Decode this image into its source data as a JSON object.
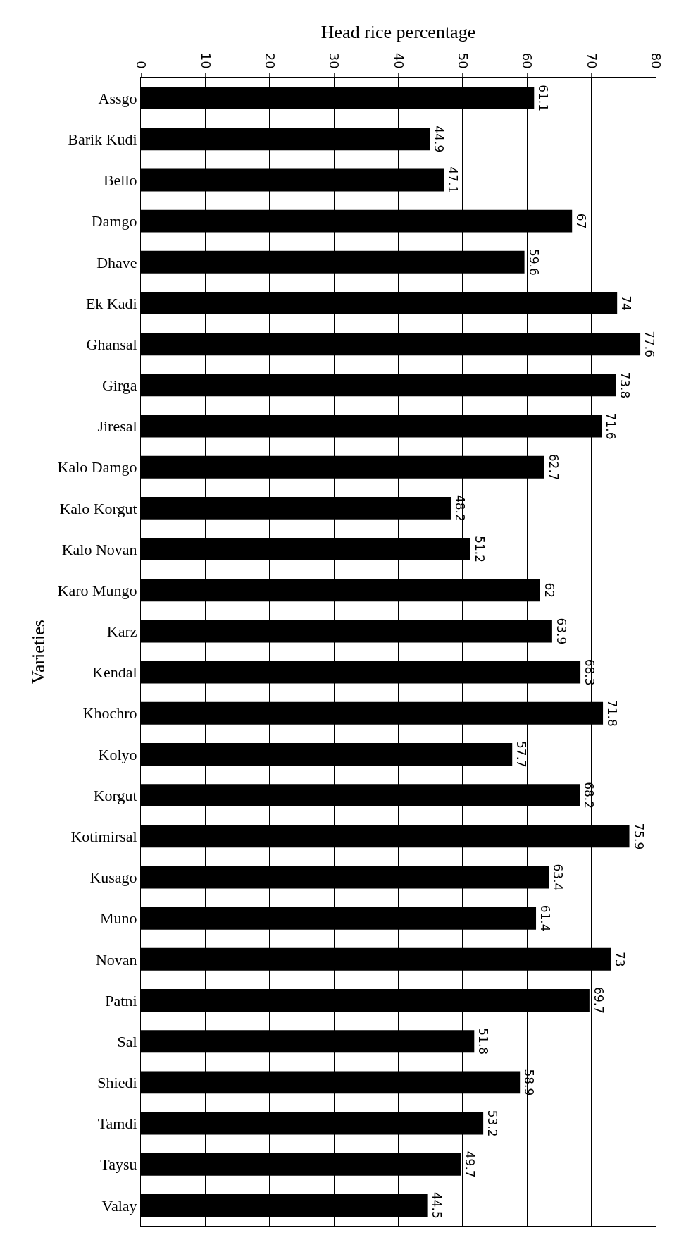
{
  "chart_data": {
    "type": "bar",
    "orientation": "horizontal",
    "xlabel": "Head rice percentage",
    "ylabel": "Varieties",
    "categories": [
      "Assgo",
      "Barik Kudi",
      "Bello",
      "Damgo",
      "Dhave",
      "Ek Kadi",
      "Ghansal",
      "Girga",
      "Jiresal",
      "Kalo Damgo",
      "Kalo Korgut",
      "Kalo Novan",
      "Karo Mungo",
      "Karz",
      "Kendal",
      "Khochro",
      "Kolyo",
      "Korgut",
      "Kotimirsal",
      "Kusago",
      "Muno",
      "Novan",
      "Patni",
      "Sal",
      "Shiedi",
      "Tamdi",
      "Taysu",
      "Valay"
    ],
    "values": [
      61.1,
      44.9,
      47.1,
      67,
      59.6,
      74,
      77.6,
      73.8,
      71.6,
      62.7,
      48.2,
      51.2,
      62,
      63.9,
      68.3,
      71.8,
      57.7,
      68.2,
      75.9,
      63.4,
      61.4,
      73,
      69.7,
      51.8,
      58.9,
      53.2,
      49.7,
      44.5
    ],
    "color": "#000000",
    "xlim": [
      0,
      80
    ],
    "xticks": [
      0,
      10,
      20,
      30,
      40,
      50,
      60,
      70,
      80
    ],
    "grid": "x",
    "data_labels": true
  }
}
